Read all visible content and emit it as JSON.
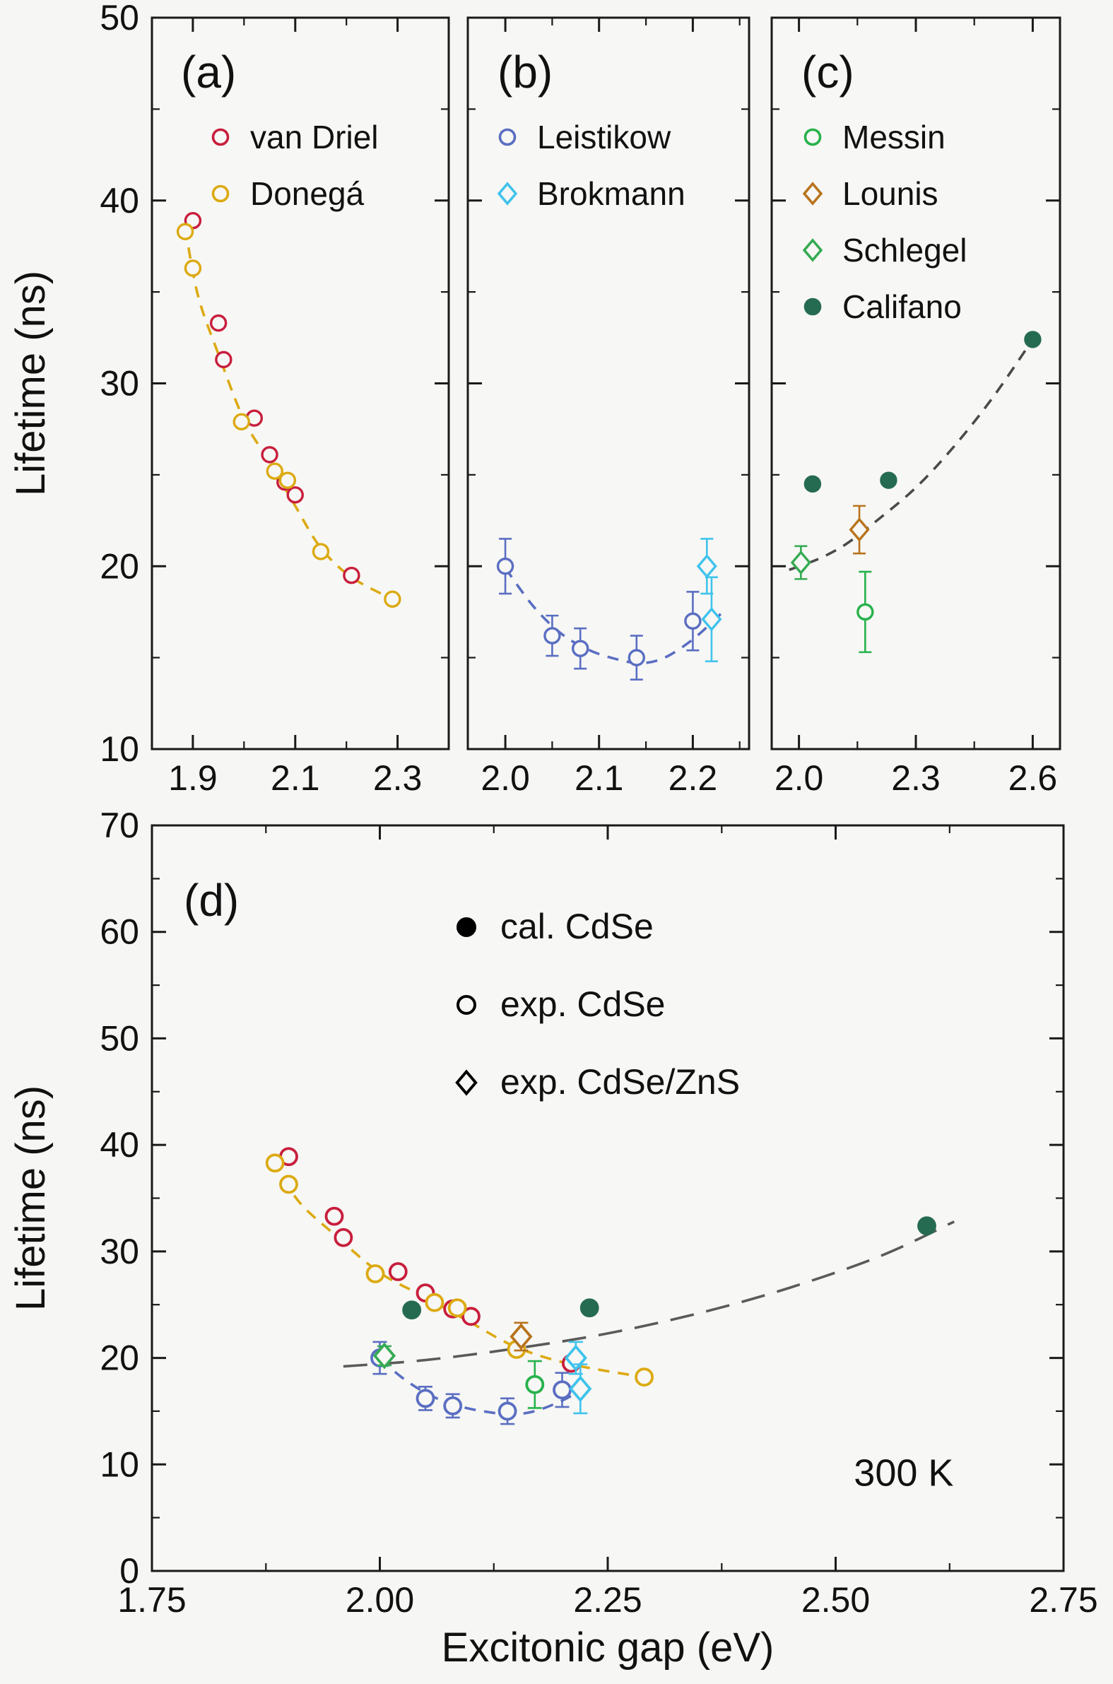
{
  "figure": {
    "ylabel": "Lifetime (ns)",
    "xlabel": "Excitonic gap (eV)",
    "background": "#f6f6f4",
    "panel_background": "#f7f7f5",
    "axis_color": "#1a1a1a",
    "text_color": "#111111"
  },
  "chart_data": [
    {
      "id": "a",
      "type": "scatter",
      "panel_label": "(a)",
      "xlim": [
        1.82,
        2.4
      ],
      "ylim": [
        10,
        50
      ],
      "xtick_values": [
        1.9,
        2.1,
        2.3
      ],
      "xtick_labels": [
        "1.9",
        "2.1",
        "2.3"
      ],
      "ytick_values": [
        10,
        20,
        30,
        40,
        50
      ],
      "ytick_labels": [
        "10",
        "20",
        "30",
        "40",
        "50"
      ],
      "legend": [
        {
          "label": "van Driel",
          "marker": "circle",
          "open": true,
          "color": "#c81e3c"
        },
        {
          "label": "Donegá",
          "marker": "circle",
          "open": true,
          "color": "#dcaa12"
        }
      ],
      "curves": [
        {
          "color": "#dcaa12",
          "style": "dashed",
          "points": [
            [
              1.885,
              38.5
            ],
            [
              1.91,
              34.8
            ],
            [
              1.95,
              31.6
            ],
            [
              2.0,
              28.0
            ],
            [
              2.05,
              25.7
            ],
            [
              2.1,
              23.3
            ],
            [
              2.15,
              21.0
            ],
            [
              2.21,
              19.4
            ],
            [
              2.29,
              18.2
            ]
          ]
        }
      ],
      "series": [
        {
          "name": "van Driel",
          "marker": "circle",
          "open": true,
          "color": "#c81e3c",
          "points": [
            [
              1.9,
              38.9
            ],
            [
              1.95,
              33.3
            ],
            [
              1.96,
              31.3
            ],
            [
              2.02,
              28.1
            ],
            [
              2.05,
              26.1
            ],
            [
              2.08,
              24.6
            ],
            [
              2.1,
              23.9
            ],
            [
              2.21,
              19.5
            ]
          ]
        },
        {
          "name": "Donegá",
          "marker": "circle",
          "open": true,
          "color": "#dcaa12",
          "points": [
            [
              1.885,
              38.3
            ],
            [
              1.9,
              36.3
            ],
            [
              1.995,
              27.9
            ],
            [
              2.06,
              25.2
            ],
            [
              2.085,
              24.7
            ],
            [
              2.15,
              20.8
            ],
            [
              2.29,
              18.2
            ]
          ]
        }
      ]
    },
    {
      "id": "b",
      "type": "scatter",
      "panel_label": "(b)",
      "xlim": [
        1.96,
        2.26
      ],
      "ylim": [
        10,
        50
      ],
      "xtick_values": [
        2.0,
        2.1,
        2.2
      ],
      "xtick_labels": [
        "2.0",
        "2.1",
        "2.2"
      ],
      "ytick_values": [
        10,
        20,
        30,
        40,
        50
      ],
      "ytick_labels": [
        "10",
        "20",
        "30",
        "40",
        "50"
      ],
      "legend": [
        {
          "label": "Leistikow",
          "marker": "circle",
          "open": true,
          "color": "#5a6ec2"
        },
        {
          "label": "Brokmann",
          "marker": "diamond",
          "open": true,
          "color": "#3fc3ec"
        }
      ],
      "curves": [
        {
          "color": "#5a6ec2",
          "style": "dashed",
          "points": [
            [
              2.0,
              19.9
            ],
            [
              2.03,
              17.8
            ],
            [
              2.06,
              16.3
            ],
            [
              2.09,
              15.4
            ],
            [
              2.12,
              14.9
            ],
            [
              2.145,
              14.7
            ],
            [
              2.17,
              15.0
            ],
            [
              2.2,
              16.0
            ],
            [
              2.23,
              17.4
            ]
          ]
        }
      ],
      "series": [
        {
          "name": "Leistikow",
          "marker": "circle",
          "open": true,
          "color": "#5a6ec2",
          "points": [
            [
              2.0,
              20.0,
              1.5
            ],
            [
              2.05,
              16.2,
              1.1
            ],
            [
              2.08,
              15.5,
              1.1
            ],
            [
              2.14,
              15.0,
              1.2
            ],
            [
              2.2,
              17.0,
              1.6
            ]
          ]
        },
        {
          "name": "Brokmann",
          "marker": "diamond",
          "open": true,
          "color": "#3fc3ec",
          "points": [
            [
              2.215,
              20.0,
              1.5
            ],
            [
              2.22,
              17.1,
              2.3
            ]
          ]
        }
      ]
    },
    {
      "id": "c",
      "type": "scatter",
      "panel_label": "(c)",
      "xlim": [
        1.93,
        2.67
      ],
      "ylim": [
        10,
        50
      ],
      "xtick_values": [
        2.0,
        2.3,
        2.6
      ],
      "xtick_labels": [
        "2.0",
        "2.3",
        "2.6"
      ],
      "ytick_values": [
        10,
        20,
        30,
        40,
        50
      ],
      "ytick_labels": [
        "10",
        "20",
        "30",
        "40",
        "50"
      ],
      "legend": [
        {
          "label": "Messin",
          "marker": "circle",
          "open": true,
          "color": "#27b24b"
        },
        {
          "label": "Lounis",
          "marker": "diamond",
          "open": true,
          "color": "#b8731c"
        },
        {
          "label": "Schlegel",
          "marker": "diamond",
          "open": true,
          "color": "#35ab52"
        },
        {
          "label": "Califano",
          "marker": "circle",
          "open": false,
          "color": "#256b52"
        }
      ],
      "curves": [
        {
          "color": "#4a4a4a",
          "style": "dashed",
          "points": [
            [
              1.975,
              19.8
            ],
            [
              2.05,
              20.4
            ],
            [
              2.12,
              21.2
            ],
            [
              2.2,
              22.5
            ],
            [
              2.3,
              24.3
            ],
            [
              2.4,
              26.6
            ],
            [
              2.5,
              29.3
            ],
            [
              2.6,
              32.4
            ]
          ]
        }
      ],
      "series": [
        {
          "name": "Messin",
          "marker": "circle",
          "open": true,
          "color": "#27b24b",
          "points": [
            [
              2.17,
              17.5,
              2.2
            ]
          ]
        },
        {
          "name": "Lounis",
          "marker": "diamond",
          "open": true,
          "color": "#b8731c",
          "points": [
            [
              2.155,
              22.0,
              1.3
            ]
          ]
        },
        {
          "name": "Schlegel",
          "marker": "diamond",
          "open": true,
          "color": "#35ab52",
          "points": [
            [
              2.005,
              20.2,
              0.9
            ]
          ]
        },
        {
          "name": "Califano",
          "marker": "circle",
          "open": false,
          "color": "#256b52",
          "points": [
            [
              2.035,
              24.5
            ],
            [
              2.23,
              24.7
            ],
            [
              2.6,
              32.4
            ]
          ]
        }
      ]
    },
    {
      "id": "d",
      "type": "scatter",
      "panel_label": "(d)",
      "xlim": [
        1.75,
        2.75
      ],
      "ylim": [
        0,
        70
      ],
      "xtick_values": [
        1.75,
        2.0,
        2.25,
        2.5,
        2.75
      ],
      "xtick_labels": [
        "1.75",
        "2.00",
        "2.25",
        "2.50",
        "2.75"
      ],
      "ytick_values": [
        0,
        10,
        20,
        30,
        40,
        50,
        60,
        70
      ],
      "ytick_labels": [
        "0",
        "10",
        "20",
        "30",
        "40",
        "50",
        "60",
        "70"
      ],
      "series_from": [
        "a",
        "b",
        "c"
      ],
      "legend": [
        {
          "label": "cal. CdSe",
          "marker": "circle",
          "open": false,
          "color": "#000000"
        },
        {
          "label": "exp. CdSe",
          "marker": "circle",
          "open": true,
          "color": "#000000"
        },
        {
          "label": "exp. CdSe/ZnS",
          "marker": "diamond",
          "open": true,
          "color": "#000000"
        }
      ],
      "curves": [
        {
          "color": "#dcaa12",
          "style": "dashed",
          "points": [
            [
              1.885,
              38.5
            ],
            [
              1.91,
              34.8
            ],
            [
              1.95,
              31.6
            ],
            [
              2.0,
              28.0
            ],
            [
              2.05,
              25.7
            ],
            [
              2.1,
              23.3
            ],
            [
              2.15,
              21.0
            ],
            [
              2.21,
              19.4
            ],
            [
              2.29,
              18.2
            ]
          ]
        },
        {
          "color": "#5a6ec2",
          "style": "dashed",
          "points": [
            [
              2.0,
              19.9
            ],
            [
              2.03,
              17.8
            ],
            [
              2.06,
              16.3
            ],
            [
              2.09,
              15.4
            ],
            [
              2.12,
              14.9
            ],
            [
              2.145,
              14.7
            ],
            [
              2.17,
              15.0
            ],
            [
              2.2,
              16.0
            ],
            [
              2.23,
              17.4
            ]
          ]
        },
        {
          "color": "#5a5a5a",
          "style": "longdash",
          "points": [
            [
              1.96,
              19.2
            ],
            [
              2.05,
              19.8
            ],
            [
              2.15,
              20.9
            ],
            [
              2.25,
              22.3
            ],
            [
              2.35,
              24.2
            ],
            [
              2.45,
              26.6
            ],
            [
              2.55,
              29.6
            ],
            [
              2.63,
              32.8
            ]
          ]
        }
      ],
      "annotations": [
        {
          "text": "300 K",
          "x": 2.52,
          "y": 8.0
        }
      ]
    }
  ]
}
